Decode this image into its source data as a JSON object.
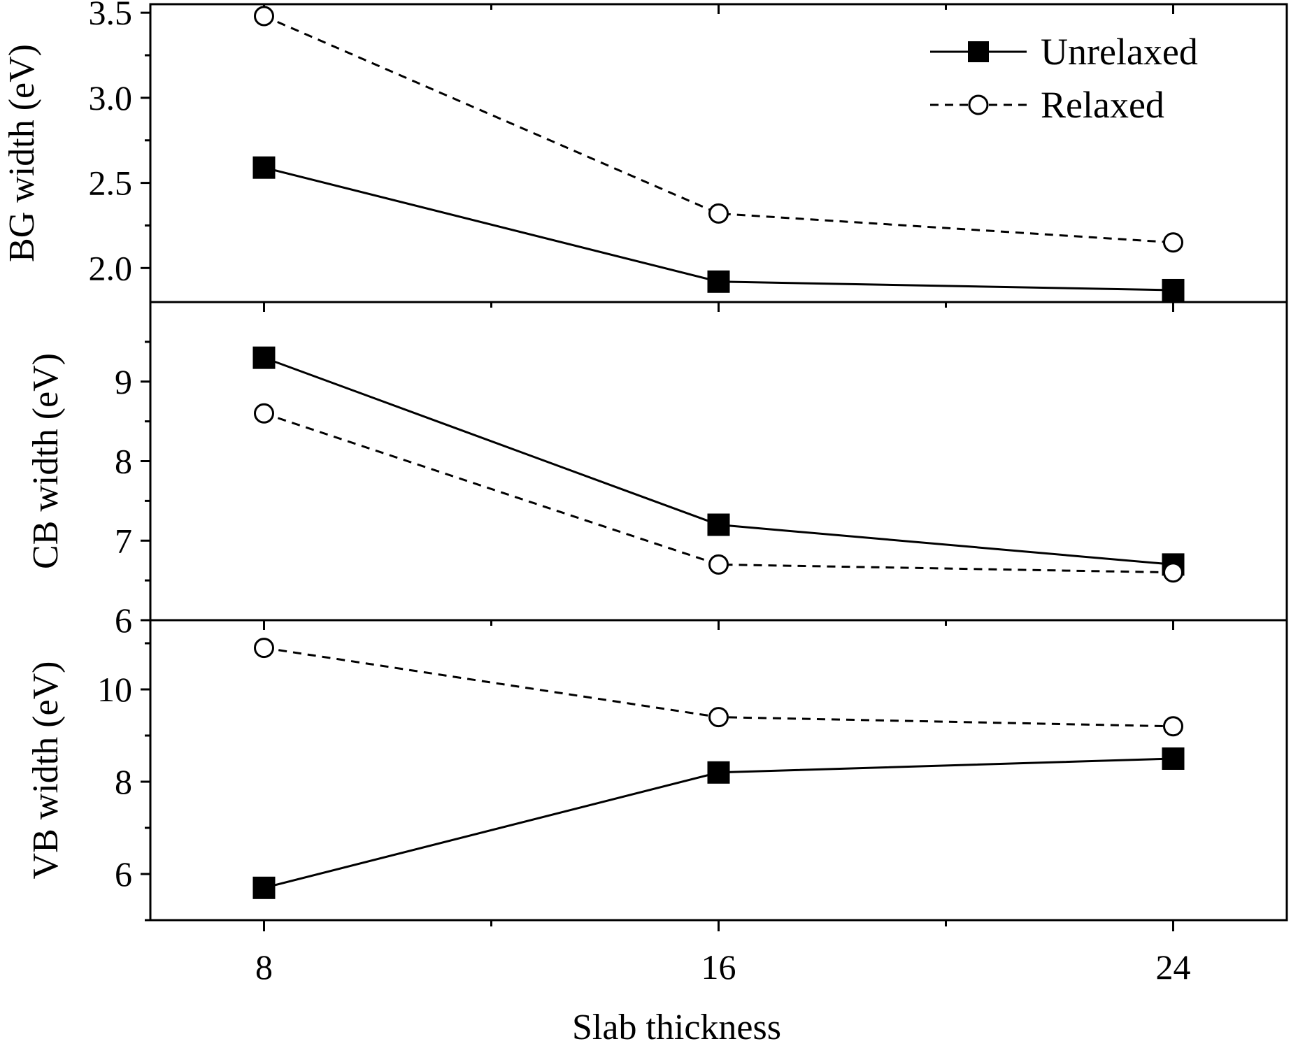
{
  "chart_data": {
    "type": "line",
    "x": [
      8,
      16,
      24
    ],
    "xlabel": "Slab thickness",
    "xlim": [
      6,
      26
    ],
    "xticks": [
      8,
      16,
      24
    ],
    "xtick_labels": [
      "8",
      "16",
      "24"
    ],
    "legend": {
      "placement": "top-right",
      "entries": [
        {
          "name": "Unrelaxed",
          "marker": "filled-square",
          "line": "solid"
        },
        {
          "name": "Relaxed",
          "marker": "open-circle",
          "line": "dashed"
        }
      ]
    },
    "panels": [
      {
        "ylabel": "BG width (eV)",
        "ylim": [
          1.8,
          3.55
        ],
        "yticks": [
          2.0,
          2.5,
          3.0,
          3.5
        ],
        "ytick_labels": [
          "2.0",
          "2.5",
          "3.0",
          "3.5"
        ],
        "series": [
          {
            "name": "Unrelaxed",
            "values": [
              2.59,
              1.92,
              1.87
            ]
          },
          {
            "name": "Relaxed",
            "values": [
              3.48,
              2.32,
              2.15
            ]
          }
        ]
      },
      {
        "ylabel": "CB width (eV)",
        "ylim": [
          6,
          10
        ],
        "yticks": [
          6,
          7,
          8,
          9
        ],
        "ytick_labels": [
          "6",
          "7",
          "8",
          "9"
        ],
        "series": [
          {
            "name": "Unrelaxed",
            "values": [
              9.3,
              7.2,
              6.7
            ]
          },
          {
            "name": "Relaxed",
            "values": [
              8.6,
              6.7,
              6.6
            ]
          }
        ]
      },
      {
        "ylabel": "VB width (eV)",
        "ylim": [
          5,
          11.5
        ],
        "yticks": [
          6,
          8,
          10
        ],
        "ytick_labels": [
          "6",
          "8",
          "10"
        ],
        "series": [
          {
            "name": "Unrelaxed",
            "values": [
              5.7,
              8.2,
              8.5
            ]
          },
          {
            "name": "Relaxed",
            "values": [
              10.9,
              9.4,
              9.2
            ]
          }
        ]
      }
    ]
  }
}
